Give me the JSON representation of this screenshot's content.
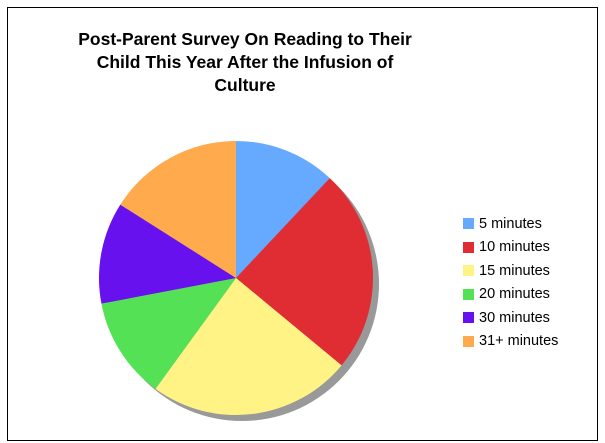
{
  "chart_data": {
    "type": "pie",
    "title_lines": [
      "Post-Parent Survey On Reading to Their",
      "Child This Year After the Infusion of",
      "Culture"
    ],
    "categories": [
      "5 minutes",
      "10 minutes",
      "15 minutes",
      "20 minutes",
      "30 minutes",
      "31+ minutes"
    ],
    "values": [
      12,
      24,
      24,
      12,
      12,
      16
    ],
    "colors": [
      "#66aaff",
      "#e02d33",
      "#fff385",
      "#55e155",
      "#6611ee",
      "#ffaa4d"
    ],
    "shadow_color": "#999999",
    "legend_position": "right",
    "start_angle": "top, clockwise"
  }
}
